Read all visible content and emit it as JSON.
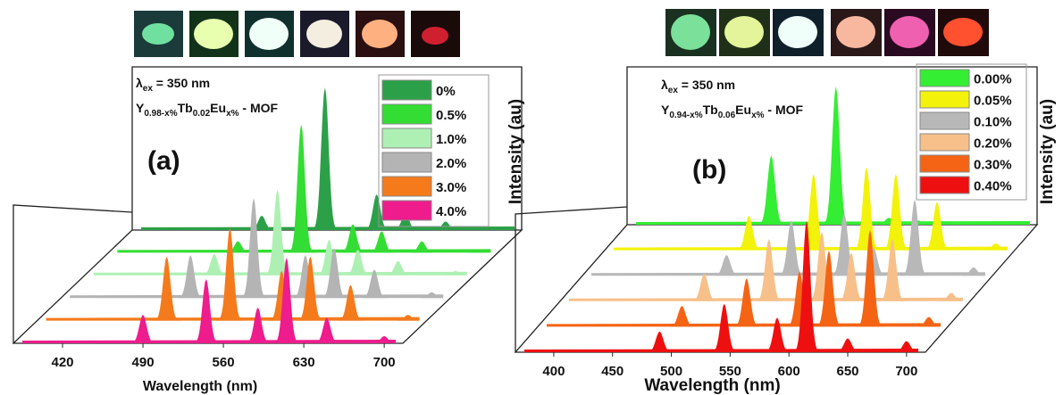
{
  "chart_data": [
    {
      "type": "waterfall",
      "panel_label": "(a)",
      "excitation": {
        "symbol": "λ",
        "sub": "ex",
        "text": " = 350 nm"
      },
      "formula": [
        "Y",
        "0.98-x%",
        "Tb",
        "0.02",
        "Eu",
        "x%",
        " - MOF"
      ],
      "x_label": "Wavelength (nm)",
      "y_label": "Intensity (au)",
      "xlim": [
        385,
        710
      ],
      "xticks": [
        420,
        490,
        560,
        630,
        700
      ],
      "x": [
        490,
        545,
        590,
        615,
        650,
        700
      ],
      "series": [
        {
          "name": "0%",
          "color": "#2ca048",
          "values": [
            10,
            100,
            25,
            12,
            6,
            2
          ]
        },
        {
          "name": "0.5%",
          "color": "#33dd33",
          "values": [
            8,
            90,
            20,
            15,
            8,
            2
          ]
        },
        {
          "name": "1.0%",
          "color": "#aef0b4",
          "values": [
            15,
            60,
            25,
            18,
            10,
            3
          ]
        },
        {
          "name": "2.0%",
          "color": "#b4b4b4",
          "values": [
            30,
            70,
            30,
            35,
            20,
            4
          ]
        },
        {
          "name": "3.0%",
          "color": "#f47a1c",
          "values": [
            45,
            65,
            35,
            45,
            25,
            4
          ]
        },
        {
          "name": "4.0%",
          "color": "#ee1c8c",
          "values": [
            20,
            45,
            25,
            60,
            18,
            5
          ]
        }
      ]
    },
    {
      "type": "waterfall",
      "panel_label": "(b)",
      "excitation": {
        "symbol": "λ",
        "sub": "ex",
        "text": " = 350 nm"
      },
      "formula": [
        "Y",
        "0.94-x%",
        "Tb",
        "0.06",
        "Eu",
        "x%",
        " - MOF"
      ],
      "x_label": "Wavelength (nm)",
      "y_label": "Intensity (au)",
      "xlim": [
        375,
        710
      ],
      "xticks": [
        400,
        450,
        500,
        550,
        600,
        650,
        700
      ],
      "x": [
        490,
        545,
        590,
        615,
        650,
        700
      ],
      "series": [
        {
          "name": "0.00%",
          "color": "#33ee33",
          "values": [
            50,
            100,
            5,
            3,
            2,
            1
          ]
        },
        {
          "name": "0.05%",
          "color": "#f2f20a",
          "values": [
            25,
            55,
            60,
            55,
            35,
            5
          ]
        },
        {
          "name": "0.10%",
          "color": "#b8b8b8",
          "values": [
            15,
            40,
            45,
            20,
            55,
            6
          ]
        },
        {
          "name": "0.20%",
          "color": "#f7c08a",
          "values": [
            20,
            45,
            50,
            35,
            45,
            6
          ]
        },
        {
          "name": "0.30%",
          "color": "#f46414",
          "values": [
            15,
            35,
            40,
            55,
            70,
            7
          ]
        },
        {
          "name": "0.40%",
          "color": "#ee1010",
          "values": [
            15,
            35,
            25,
            95,
            10,
            8
          ]
        }
      ]
    }
  ]
}
